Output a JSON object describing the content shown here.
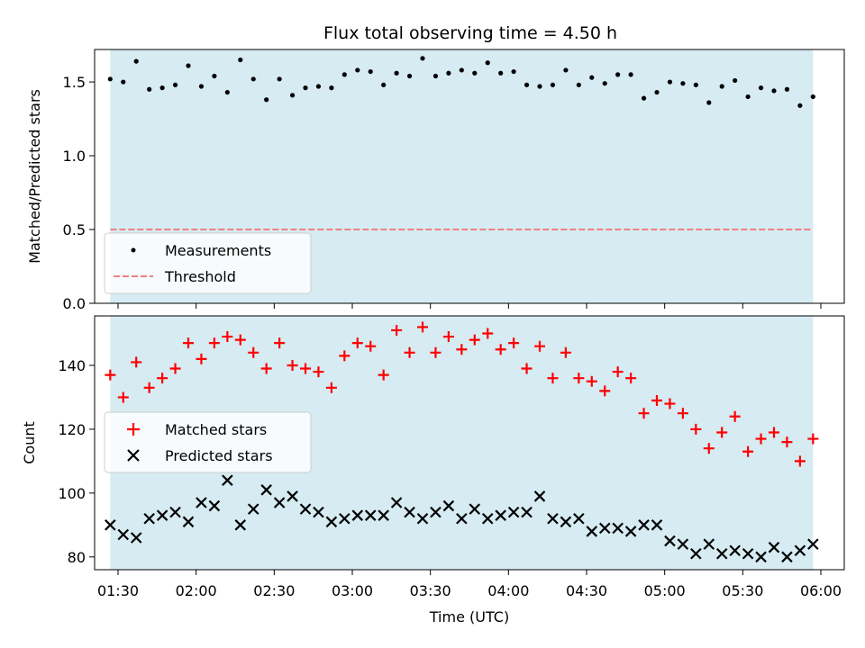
{
  "chart_data": [
    {
      "type": "scatter",
      "title": "Flux total observing time = 4.50 h",
      "ylabel": "Matched/Predicted stars",
      "xlabel": "",
      "ylim": [
        0,
        1.72
      ],
      "yticks": [
        "0.0",
        "0.5",
        "1.0",
        "1.5"
      ],
      "shaded_span": [
        "01:27",
        "05:57"
      ],
      "shade_color": "#add8e6",
      "legend": {
        "placement": "lower-left",
        "entries": [
          "Measurements",
          "Threshold"
        ]
      },
      "threshold": {
        "name": "Threshold",
        "value": 0.5,
        "color": "#f08080",
        "style": "dashed"
      },
      "series": [
        {
          "name": "Measurements",
          "marker": "dot",
          "color": "#000000",
          "x": [
            "01:27",
            "01:32",
            "01:37",
            "01:42",
            "01:47",
            "01:52",
            "01:57",
            "02:02",
            "02:07",
            "02:12",
            "02:17",
            "02:22",
            "02:27",
            "02:32",
            "02:37",
            "02:42",
            "02:47",
            "02:52",
            "02:57",
            "03:02",
            "03:07",
            "03:12",
            "03:17",
            "03:22",
            "03:27",
            "03:32",
            "03:37",
            "03:42",
            "03:47",
            "03:52",
            "03:57",
            "04:02",
            "04:07",
            "04:12",
            "04:17",
            "04:22",
            "04:27",
            "04:32",
            "04:37",
            "04:42",
            "04:47",
            "04:52",
            "04:57",
            "05:02",
            "05:07",
            "05:12",
            "05:17",
            "05:22",
            "05:27",
            "05:32",
            "05:37",
            "05:42",
            "05:47",
            "05:52",
            "05:57"
          ],
          "y": [
            1.52,
            1.5,
            1.64,
            1.45,
            1.46,
            1.48,
            1.61,
            1.47,
            1.54,
            1.43,
            1.65,
            1.52,
            1.38,
            1.52,
            1.41,
            1.46,
            1.47,
            1.46,
            1.55,
            1.58,
            1.57,
            1.48,
            1.56,
            1.54,
            1.66,
            1.54,
            1.56,
            1.58,
            1.56,
            1.63,
            1.56,
            1.57,
            1.48,
            1.47,
            1.48,
            1.58,
            1.48,
            1.53,
            1.49,
            1.55,
            1.55,
            1.39,
            1.43,
            1.5,
            1.49,
            1.48,
            1.36,
            1.47,
            1.51,
            1.4,
            1.46,
            1.44,
            1.45,
            1.34,
            1.4
          ]
        }
      ]
    },
    {
      "type": "scatter",
      "title": "",
      "xlabel": "Time (UTC)",
      "ylabel": "Count",
      "ylim": [
        76,
        155.5
      ],
      "yticks": [
        "80",
        "100",
        "120",
        "140"
      ],
      "xticks": [
        "01:30",
        "02:00",
        "02:30",
        "03:00",
        "03:30",
        "04:00",
        "04:30",
        "05:00",
        "05:30",
        "06:00"
      ],
      "shaded_span": [
        "01:27",
        "05:57"
      ],
      "shade_color": "#add8e6",
      "legend": {
        "placement": "center-left",
        "entries": [
          "Matched stars",
          "Predicted stars"
        ]
      },
      "series": [
        {
          "name": "Matched stars",
          "marker": "plus",
          "color": "#ff0000",
          "x": [
            "01:27",
            "01:32",
            "01:37",
            "01:42",
            "01:47",
            "01:52",
            "01:57",
            "02:02",
            "02:07",
            "02:12",
            "02:17",
            "02:22",
            "02:27",
            "02:32",
            "02:37",
            "02:42",
            "02:47",
            "02:52",
            "02:57",
            "03:02",
            "03:07",
            "03:12",
            "03:17",
            "03:22",
            "03:27",
            "03:32",
            "03:37",
            "03:42",
            "03:47",
            "03:52",
            "03:57",
            "04:02",
            "04:07",
            "04:12",
            "04:17",
            "04:22",
            "04:27",
            "04:32",
            "04:37",
            "04:42",
            "04:47",
            "04:52",
            "04:57",
            "05:02",
            "05:07",
            "05:12",
            "05:17",
            "05:22",
            "05:27",
            "05:32",
            "05:37",
            "05:42",
            "05:47",
            "05:52",
            "05:57"
          ],
          "y": [
            137,
            130,
            141,
            133,
            136,
            139,
            147,
            142,
            147,
            149,
            148,
            144,
            139,
            147,
            140,
            139,
            138,
            133,
            143,
            147,
            146,
            137,
            151,
            144,
            152,
            144,
            149,
            145,
            148,
            150,
            145,
            147,
            139,
            146,
            136,
            144,
            136,
            135,
            132,
            138,
            136,
            125,
            129,
            128,
            125,
            120,
            114,
            119,
            124,
            113,
            117,
            119,
            116,
            110,
            117
          ]
        },
        {
          "name": "Predicted stars",
          "marker": "x",
          "color": "#000000",
          "x": [
            "01:27",
            "01:32",
            "01:37",
            "01:42",
            "01:47",
            "01:52",
            "01:57",
            "02:02",
            "02:07",
            "02:12",
            "02:17",
            "02:22",
            "02:27",
            "02:32",
            "02:37",
            "02:42",
            "02:47",
            "02:52",
            "02:57",
            "03:02",
            "03:07",
            "03:12",
            "03:17",
            "03:22",
            "03:27",
            "03:32",
            "03:37",
            "03:42",
            "03:47",
            "03:52",
            "03:57",
            "04:02",
            "04:07",
            "04:12",
            "04:17",
            "04:22",
            "04:27",
            "04:32",
            "04:37",
            "04:42",
            "04:47",
            "04:52",
            "04:57",
            "05:02",
            "05:07",
            "05:12",
            "05:17",
            "05:22",
            "05:27",
            "05:32",
            "05:37",
            "05:42",
            "05:47",
            "05:52",
            "05:57"
          ],
          "y": [
            90,
            87,
            86,
            92,
            93,
            94,
            91,
            97,
            96,
            104,
            90,
            95,
            101,
            97,
            99,
            95,
            94,
            91,
            92,
            93,
            93,
            93,
            97,
            94,
            92,
            94,
            96,
            92,
            95,
            92,
            93,
            94,
            94,
            99,
            92,
            91,
            92,
            88,
            89,
            89,
            88,
            90,
            90,
            85,
            84,
            81,
            84,
            81,
            82,
            81,
            80,
            83,
            80,
            82,
            84
          ]
        }
      ]
    }
  ]
}
